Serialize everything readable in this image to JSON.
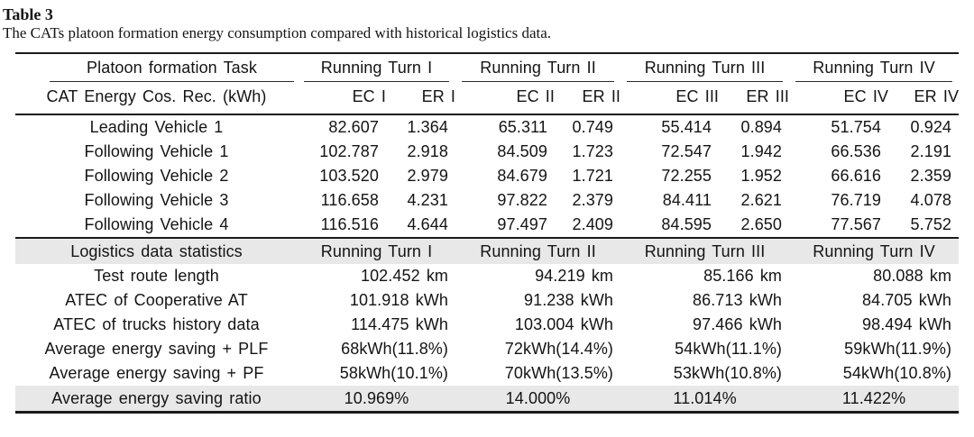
{
  "colors": {
    "band_gray": "#e8e8e8",
    "rule": "#1a1a1a"
  },
  "doc": {
    "table_label": "Table 3",
    "caption": "The CATs platoon formation energy consumption compared with historical logistics data."
  },
  "header": {
    "task_col": "Platoon formation Task",
    "groups": [
      "Running Turn I",
      "Running Turn II",
      "Running Turn III",
      "Running Turn IV"
    ],
    "subheader_label": "CAT Energy Cos. Rec. (kWh)",
    "subcols": [
      "EC I",
      "ER I",
      "EC II",
      "ER II",
      "EC III",
      "ER III",
      "EC IV",
      "ER IV"
    ]
  },
  "vehicle_rows": [
    {
      "label": "Leading Vehicle 1",
      "values": [
        "82.607",
        "1.364",
        "65.311",
        "0.749",
        "55.414",
        "0.894",
        "51.754",
        "0.924"
      ]
    },
    {
      "label": "Following Vehicle 1",
      "values": [
        "102.787",
        "2.918",
        "84.509",
        "1.723",
        "72.547",
        "1.942",
        "66.536",
        "2.191"
      ]
    },
    {
      "label": "Following Vehicle 2",
      "values": [
        "103.520",
        "2.979",
        "84.679",
        "1.721",
        "72.255",
        "1.952",
        "66.616",
        "2.359"
      ]
    },
    {
      "label": "Following Vehicle 3",
      "values": [
        "116.658",
        "4.231",
        "97.822",
        "2.379",
        "84.411",
        "2.621",
        "76.719",
        "4.078"
      ]
    },
    {
      "label": "Following Vehicle 4",
      "values": [
        "116.516",
        "4.644",
        "97.497",
        "2.409",
        "84.595",
        "2.650",
        "77.567",
        "5.752"
      ]
    }
  ],
  "logistics": {
    "section_label": "Logistics data statistics",
    "section_groups": [
      "Running Turn I",
      "Running Turn II",
      "Running Turn III",
      "Running Turn IV"
    ],
    "rows": [
      {
        "label": "Test route length",
        "values": [
          "102.452 km",
          "94.219 km",
          "85.166 km",
          "80.088 km"
        ]
      },
      {
        "label": "ATEC of Cooperative AT",
        "values": [
          "101.918 kWh",
          "91.238 kWh",
          "86.713 kWh",
          "84.705 kWh"
        ]
      },
      {
        "label": "ATEC of trucks history data",
        "values": [
          "114.475 kWh",
          "103.004 kWh",
          "97.466 kWh",
          "98.494 kWh"
        ]
      },
      {
        "label": "Average energy saving + PLF",
        "values": [
          "68kWh(11.8%)",
          "72kWh(14.4%)",
          "54kWh(11.1%)",
          "59kWh(11.9%)"
        ]
      },
      {
        "label": "Average energy saving + PF",
        "values": [
          "58kWh(10.1%)",
          "70kWh(13.5%)",
          "53kWh(10.8%)",
          "54kWh(10.8%)"
        ]
      }
    ],
    "summary": {
      "label": "Average energy saving ratio",
      "values": [
        "10.969%",
        "14.000%",
        "11.014%",
        "11.422%"
      ]
    }
  }
}
